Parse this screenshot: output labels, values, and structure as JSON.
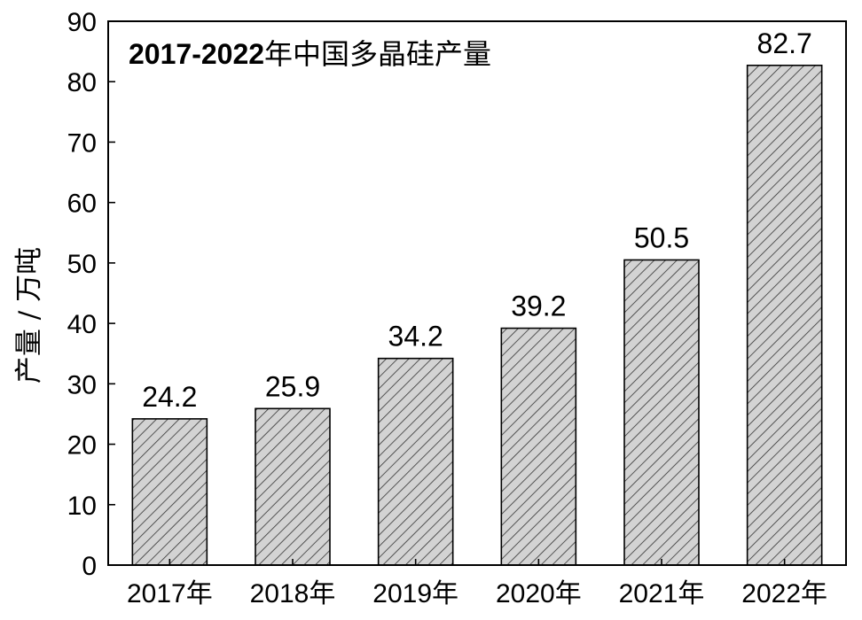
{
  "chart_data": {
    "type": "bar",
    "title_bold": "2017-2022",
    "title_rest": "年中国多晶硅产量",
    "xlabel": "",
    "ylabel": "产量 / 万吨",
    "categories": [
      "2017年",
      "2018年",
      "2019年",
      "2020年",
      "2021年",
      "2022年"
    ],
    "values": [
      24.2,
      25.9,
      34.2,
      39.2,
      50.5,
      82.7
    ],
    "value_labels": [
      "24.2",
      "25.9",
      "34.2",
      "39.2",
      "50.5",
      "82.7"
    ],
    "ylim": [
      0,
      90
    ],
    "yticks": [
      0,
      10,
      20,
      30,
      40,
      50,
      60,
      70,
      80,
      90
    ],
    "ytick_labels": [
      "0",
      "10",
      "20",
      "30",
      "40",
      "50",
      "60",
      "70",
      "80",
      "90"
    ],
    "bar_fill": "#d3d3d3",
    "bar_hatch_color": "#333333",
    "grid": false
  }
}
